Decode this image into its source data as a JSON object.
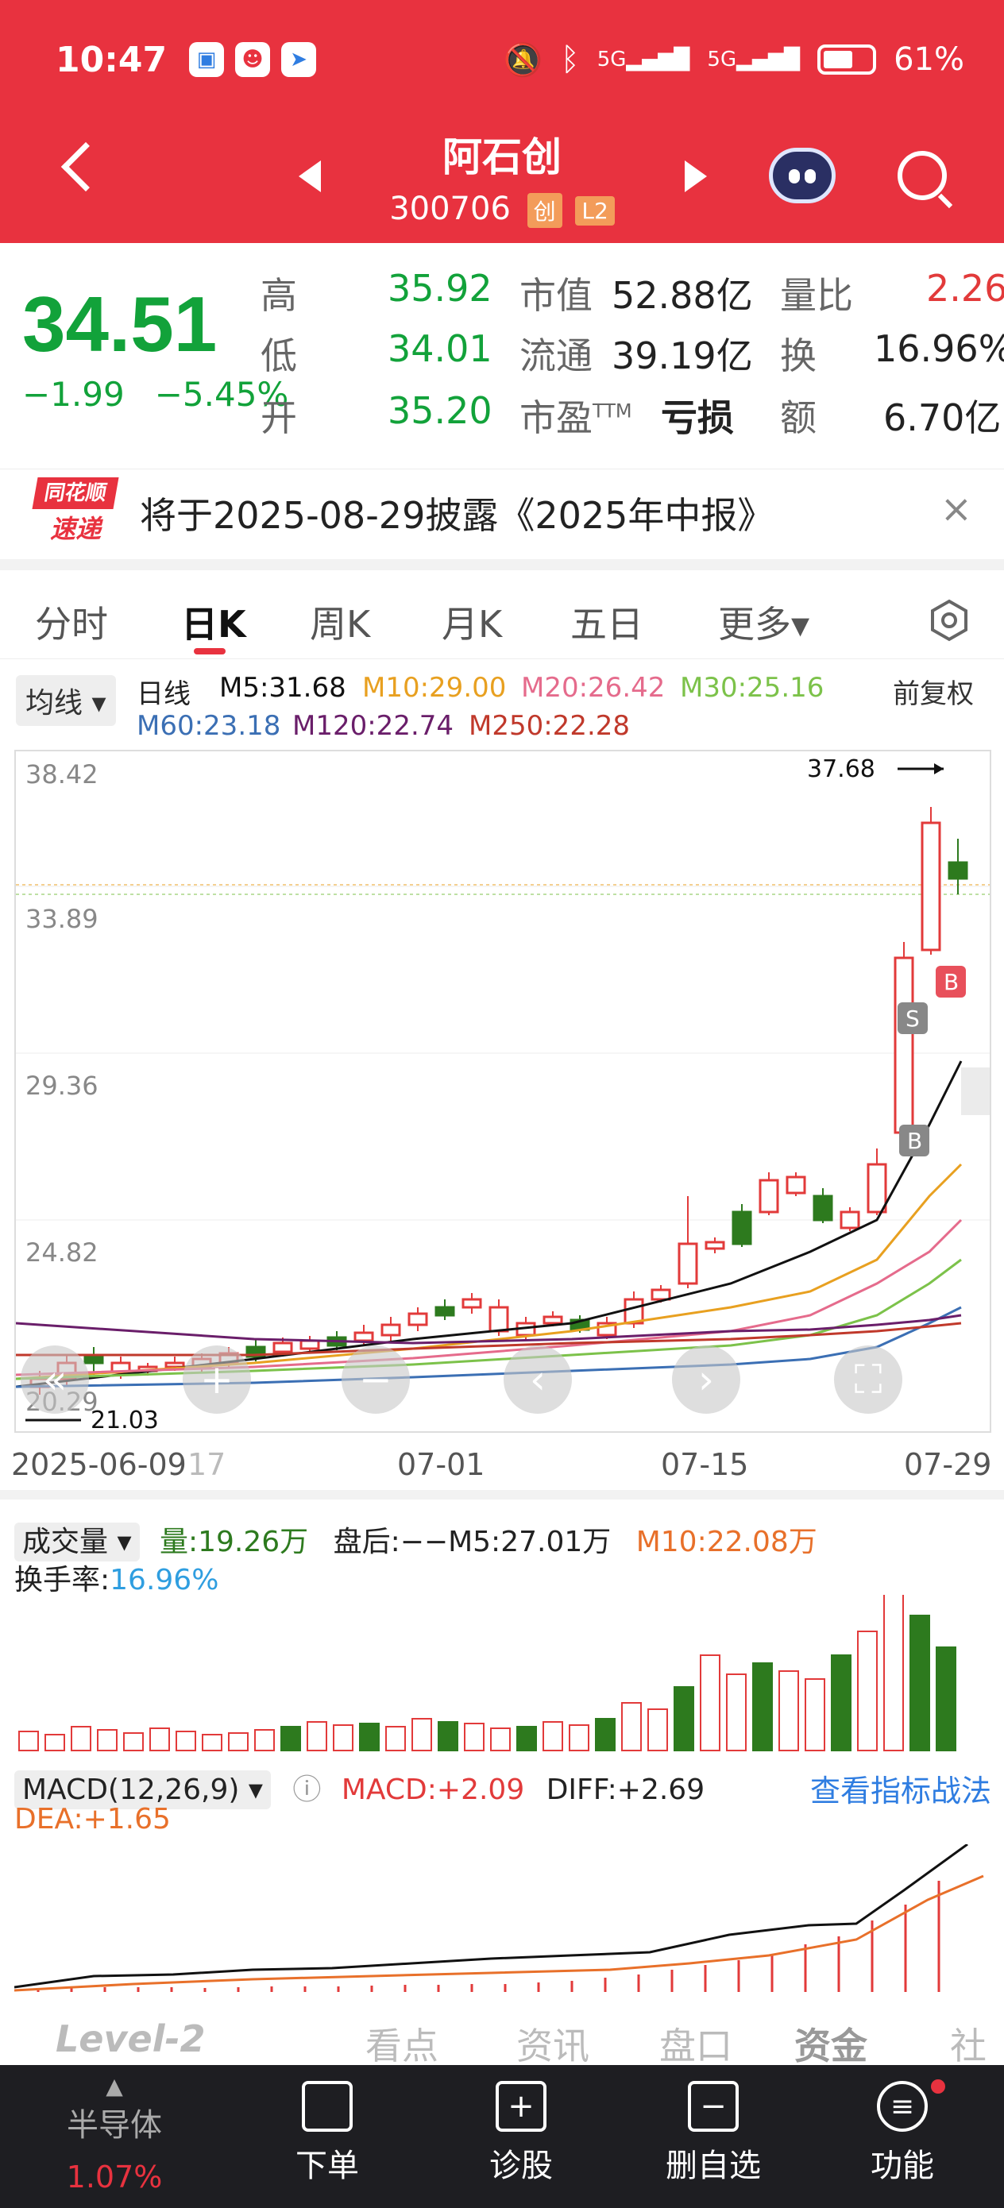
{
  "status_bar": {
    "time": "10:47",
    "battery": "61%",
    "net1": "5G",
    "net2": "5G"
  },
  "header": {
    "stock_name": "阿石创",
    "stock_code": "300706",
    "badge1": "创",
    "badge2": "L2"
  },
  "quote": {
    "price": "34.51",
    "change": "−1.99",
    "change_pct": "−5.45%",
    "high_label": "高",
    "high": "35.92",
    "low_label": "低",
    "low": "34.01",
    "open_label": "开",
    "open": "35.20",
    "mcap_label": "市值",
    "mcap": "52.88亿",
    "float_label": "流通",
    "float": "39.19亿",
    "pe_label": "市盈",
    "pe_sup": "TTM",
    "pe": "亏损",
    "vr_label": "量比",
    "vr": "2.26",
    "turnover_label": "换",
    "turnover": "16.96%",
    "amount_label": "额",
    "amount": "6.70亿"
  },
  "notice": {
    "logo_top": "同花顺",
    "logo_bottom": "速递",
    "text": "将于2025-08-29披露《2025年中报》",
    "close": "×"
  },
  "tabs": [
    "分时",
    "日K",
    "周K",
    "月K",
    "五日",
    "更多▾"
  ],
  "ma_legend": {
    "dropdown": "均线 ▾",
    "daily": "日线",
    "m5": "M5:31.68",
    "m10": "M10:29.00",
    "m20": "M20:26.42",
    "m30": "M30:25.16",
    "m60": "M60:23.18",
    "m120": "M120:22.74",
    "m250": "M250:22.28",
    "adjust": "前复权"
  },
  "kline": {
    "y_ticks": [
      "38.42",
      "33.89",
      "29.36",
      "24.82"
    ],
    "bottom_tick": "20.29",
    "max_label": "37.68",
    "min_label": "21.03",
    "markers": [
      "S",
      "B",
      "B"
    ],
    "colors": {
      "up": "#e23a3a",
      "down": "#2d7a1e",
      "m5": "#111111",
      "m10": "#e8a020",
      "m20": "#e56b8c",
      "m30": "#7cc24a",
      "m60": "#3b6fb4",
      "m120": "#6a1e6a",
      "m250": "#c0392b"
    }
  },
  "x_labels": [
    "2025-06-09",
    "17",
    "07-01",
    "07-15",
    "07-29"
  ],
  "volume": {
    "dropdown": "成交量 ▾",
    "vol": "量:19.26万",
    "after": "盘后:−−",
    "m5": "M5:27.01万",
    "m10": "M10:22.08万",
    "turnover_label": "换手率:",
    "turnover": "16.96%"
  },
  "macd": {
    "dropdown": "MACD(12,26,9) ▾",
    "macd": "MACD:+2.09",
    "diff": "DIFF:+2.69",
    "dea": "DEA:+1.65",
    "link": "查看指标战法"
  },
  "ghost_tabs": [
    "Level-2",
    "看点",
    "资讯",
    "盘口",
    "资金",
    "社"
  ],
  "bottom_bar": {
    "sector": "半导体",
    "sector_pct": "1.07%",
    "items": [
      "下单",
      "诊股",
      "删自选",
      "功能"
    ]
  }
}
